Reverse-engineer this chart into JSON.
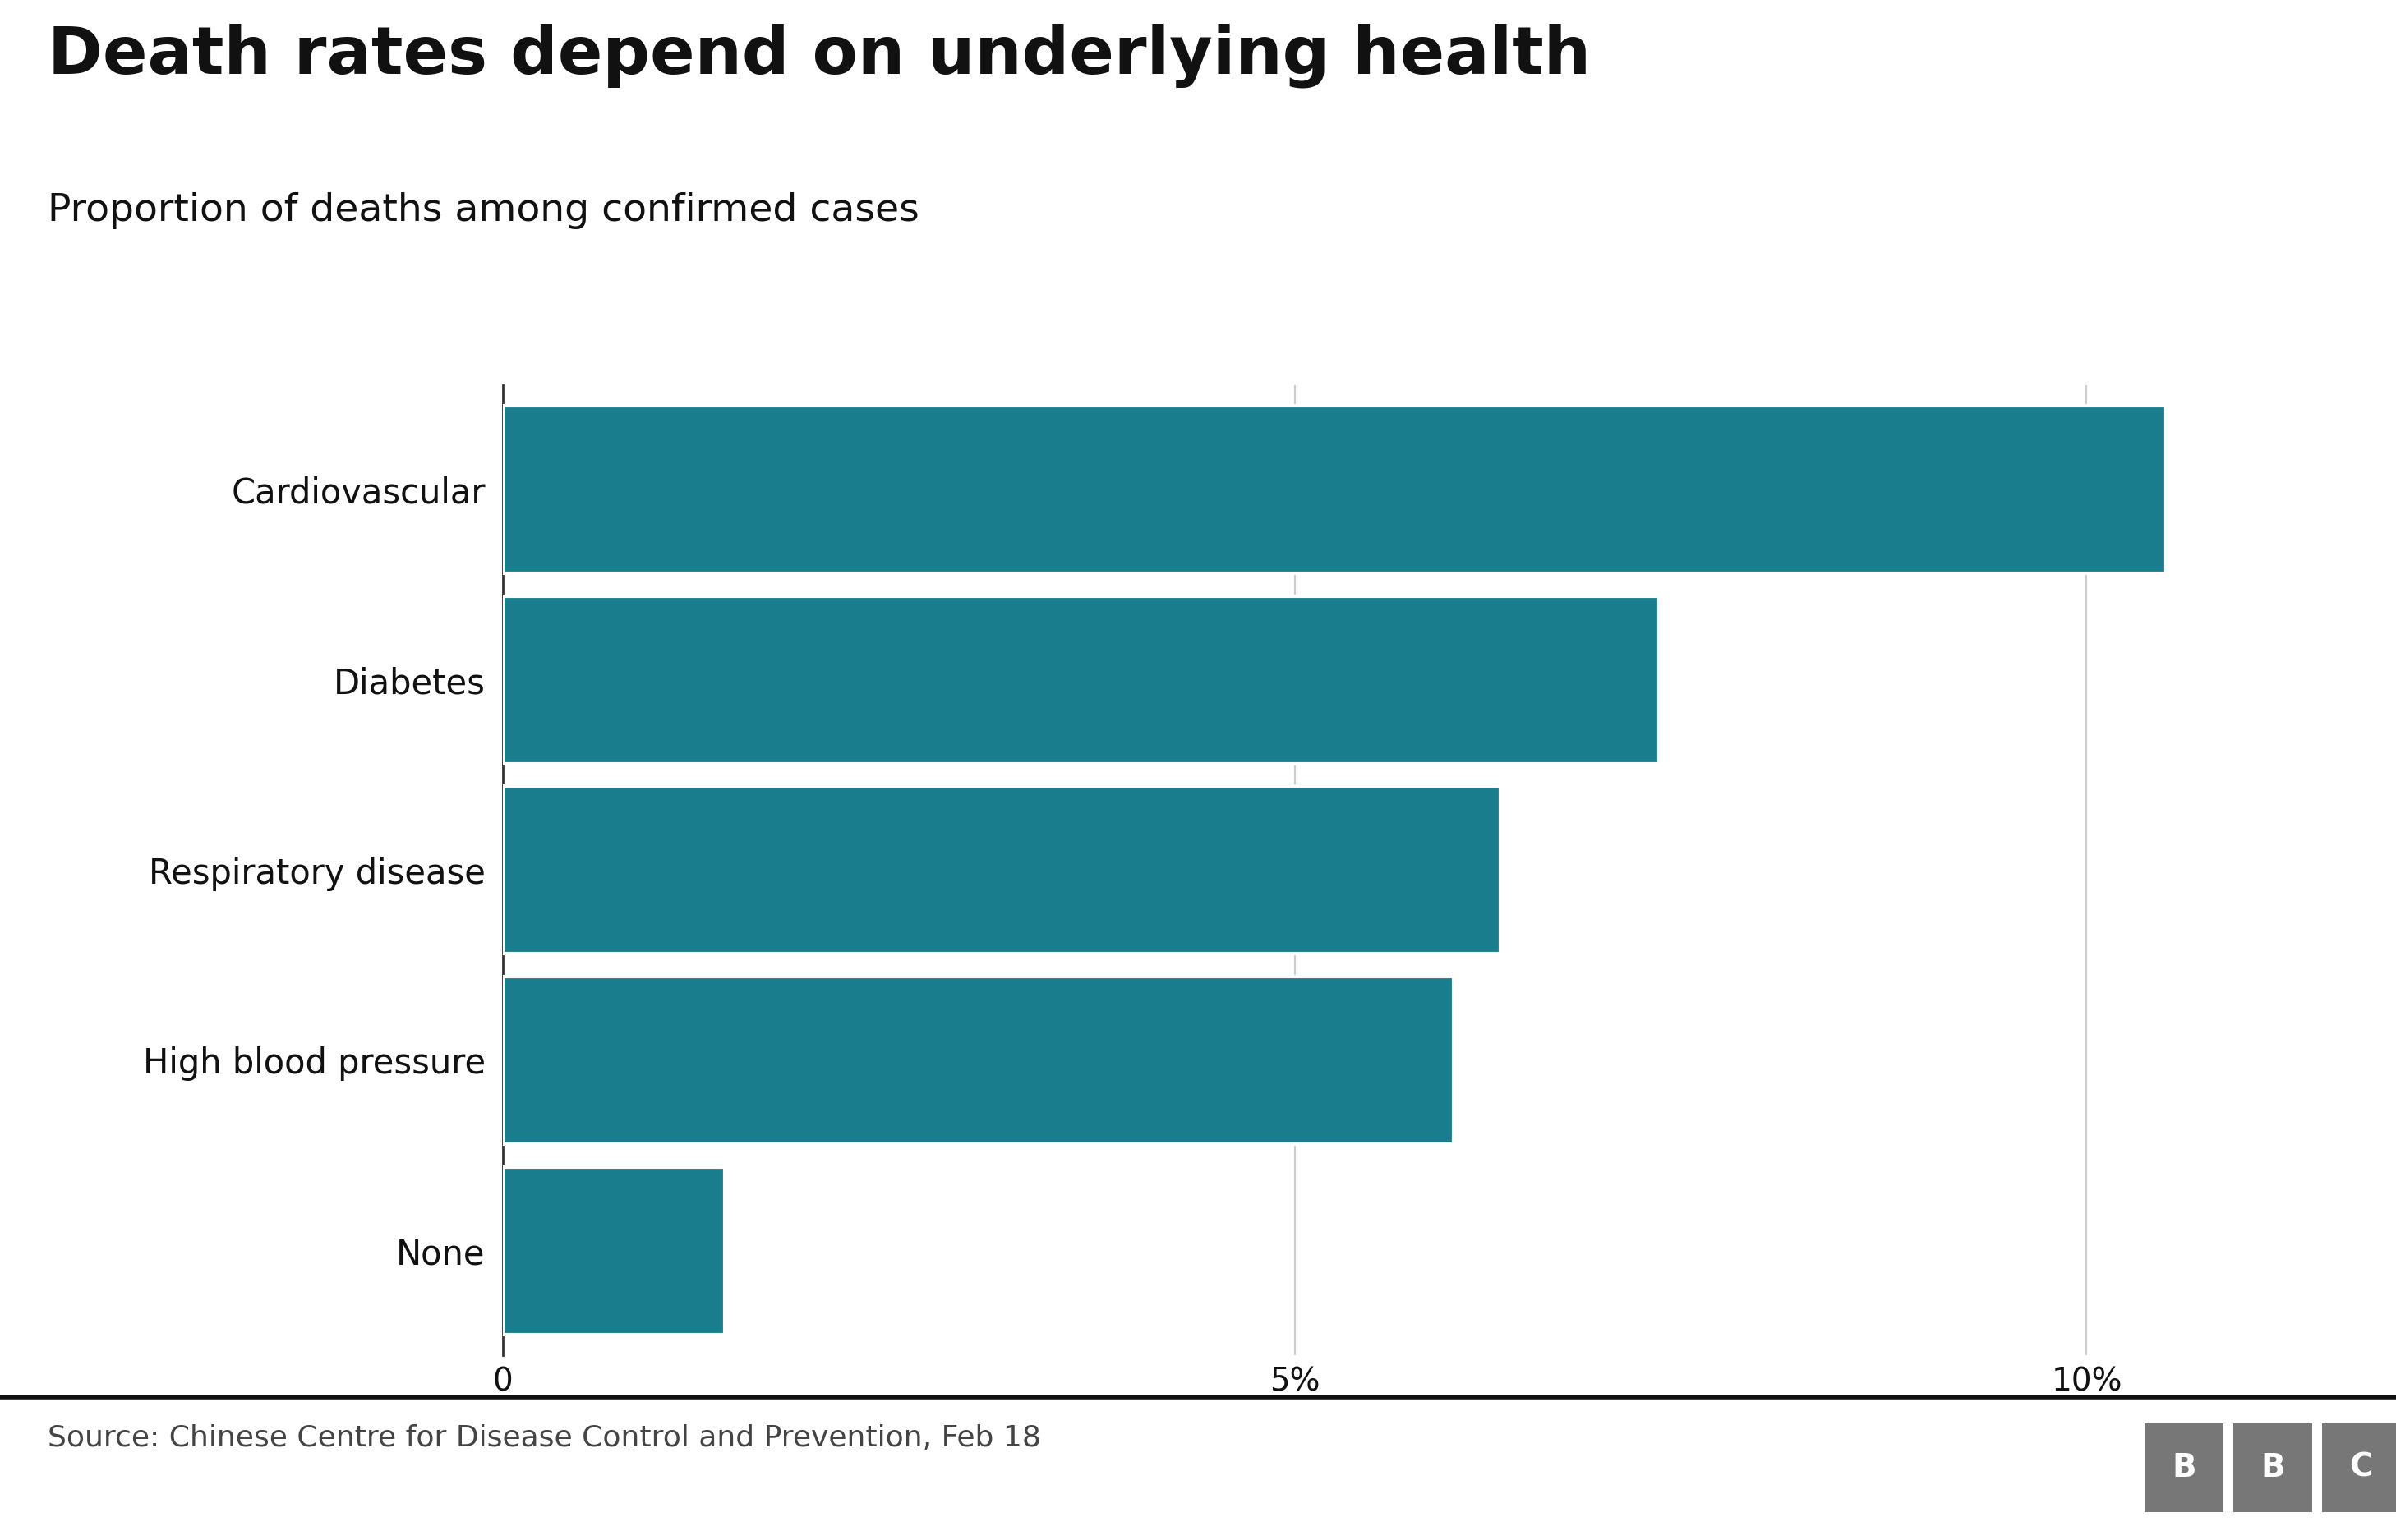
{
  "title": "Death rates depend on underlying health",
  "subtitle": "Proportion of deaths among confirmed cases",
  "categories": [
    "Cardiovascular",
    "Diabetes",
    "Respiratory disease",
    "High blood pressure",
    "None"
  ],
  "values": [
    10.5,
    7.3,
    6.3,
    6.0,
    1.4
  ],
  "bar_color": "#1a7d8e",
  "xlim": [
    0,
    11.5
  ],
  "xticks": [
    0,
    5,
    10
  ],
  "xtick_labels": [
    "0",
    "5%",
    "10%"
  ],
  "source_text": "Source: Chinese Centre for Disease Control and Prevention, Feb 18",
  "background_color": "#ffffff",
  "title_fontsize": 58,
  "subtitle_fontsize": 34,
  "label_fontsize": 30,
  "tick_fontsize": 28,
  "source_fontsize": 26,
  "bar_height": 0.88,
  "bar_color_rgb": "#1a7d8e",
  "spine_color": "#333333",
  "grid_color": "#cccccc",
  "text_color": "#111111",
  "source_color": "#444444",
  "bbc_box_color": "#777777",
  "separator_color": "#111111"
}
